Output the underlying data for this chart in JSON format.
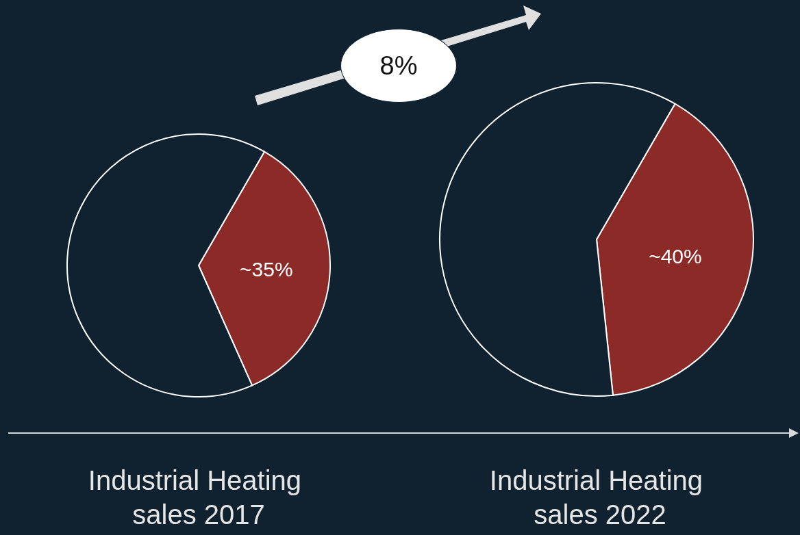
{
  "chart_data": [
    {
      "type": "pie",
      "title": "Industrial Heating sales 2017",
      "categories": [
        null,
        null
      ],
      "values": [
        35,
        65
      ],
      "colors": [
        "#8b2a26",
        "#10222f"
      ],
      "value_labels": [
        "~35%",
        null
      ],
      "annotations": [
        "8%"
      ]
    },
    {
      "type": "pie",
      "title": "Industrial Heating sales 2022",
      "categories": [
        null,
        null
      ],
      "values": [
        40,
        60
      ],
      "colors": [
        "#8b2a26",
        "#10222f"
      ],
      "value_labels": [
        "~40%",
        null
      ]
    }
  ]
}
